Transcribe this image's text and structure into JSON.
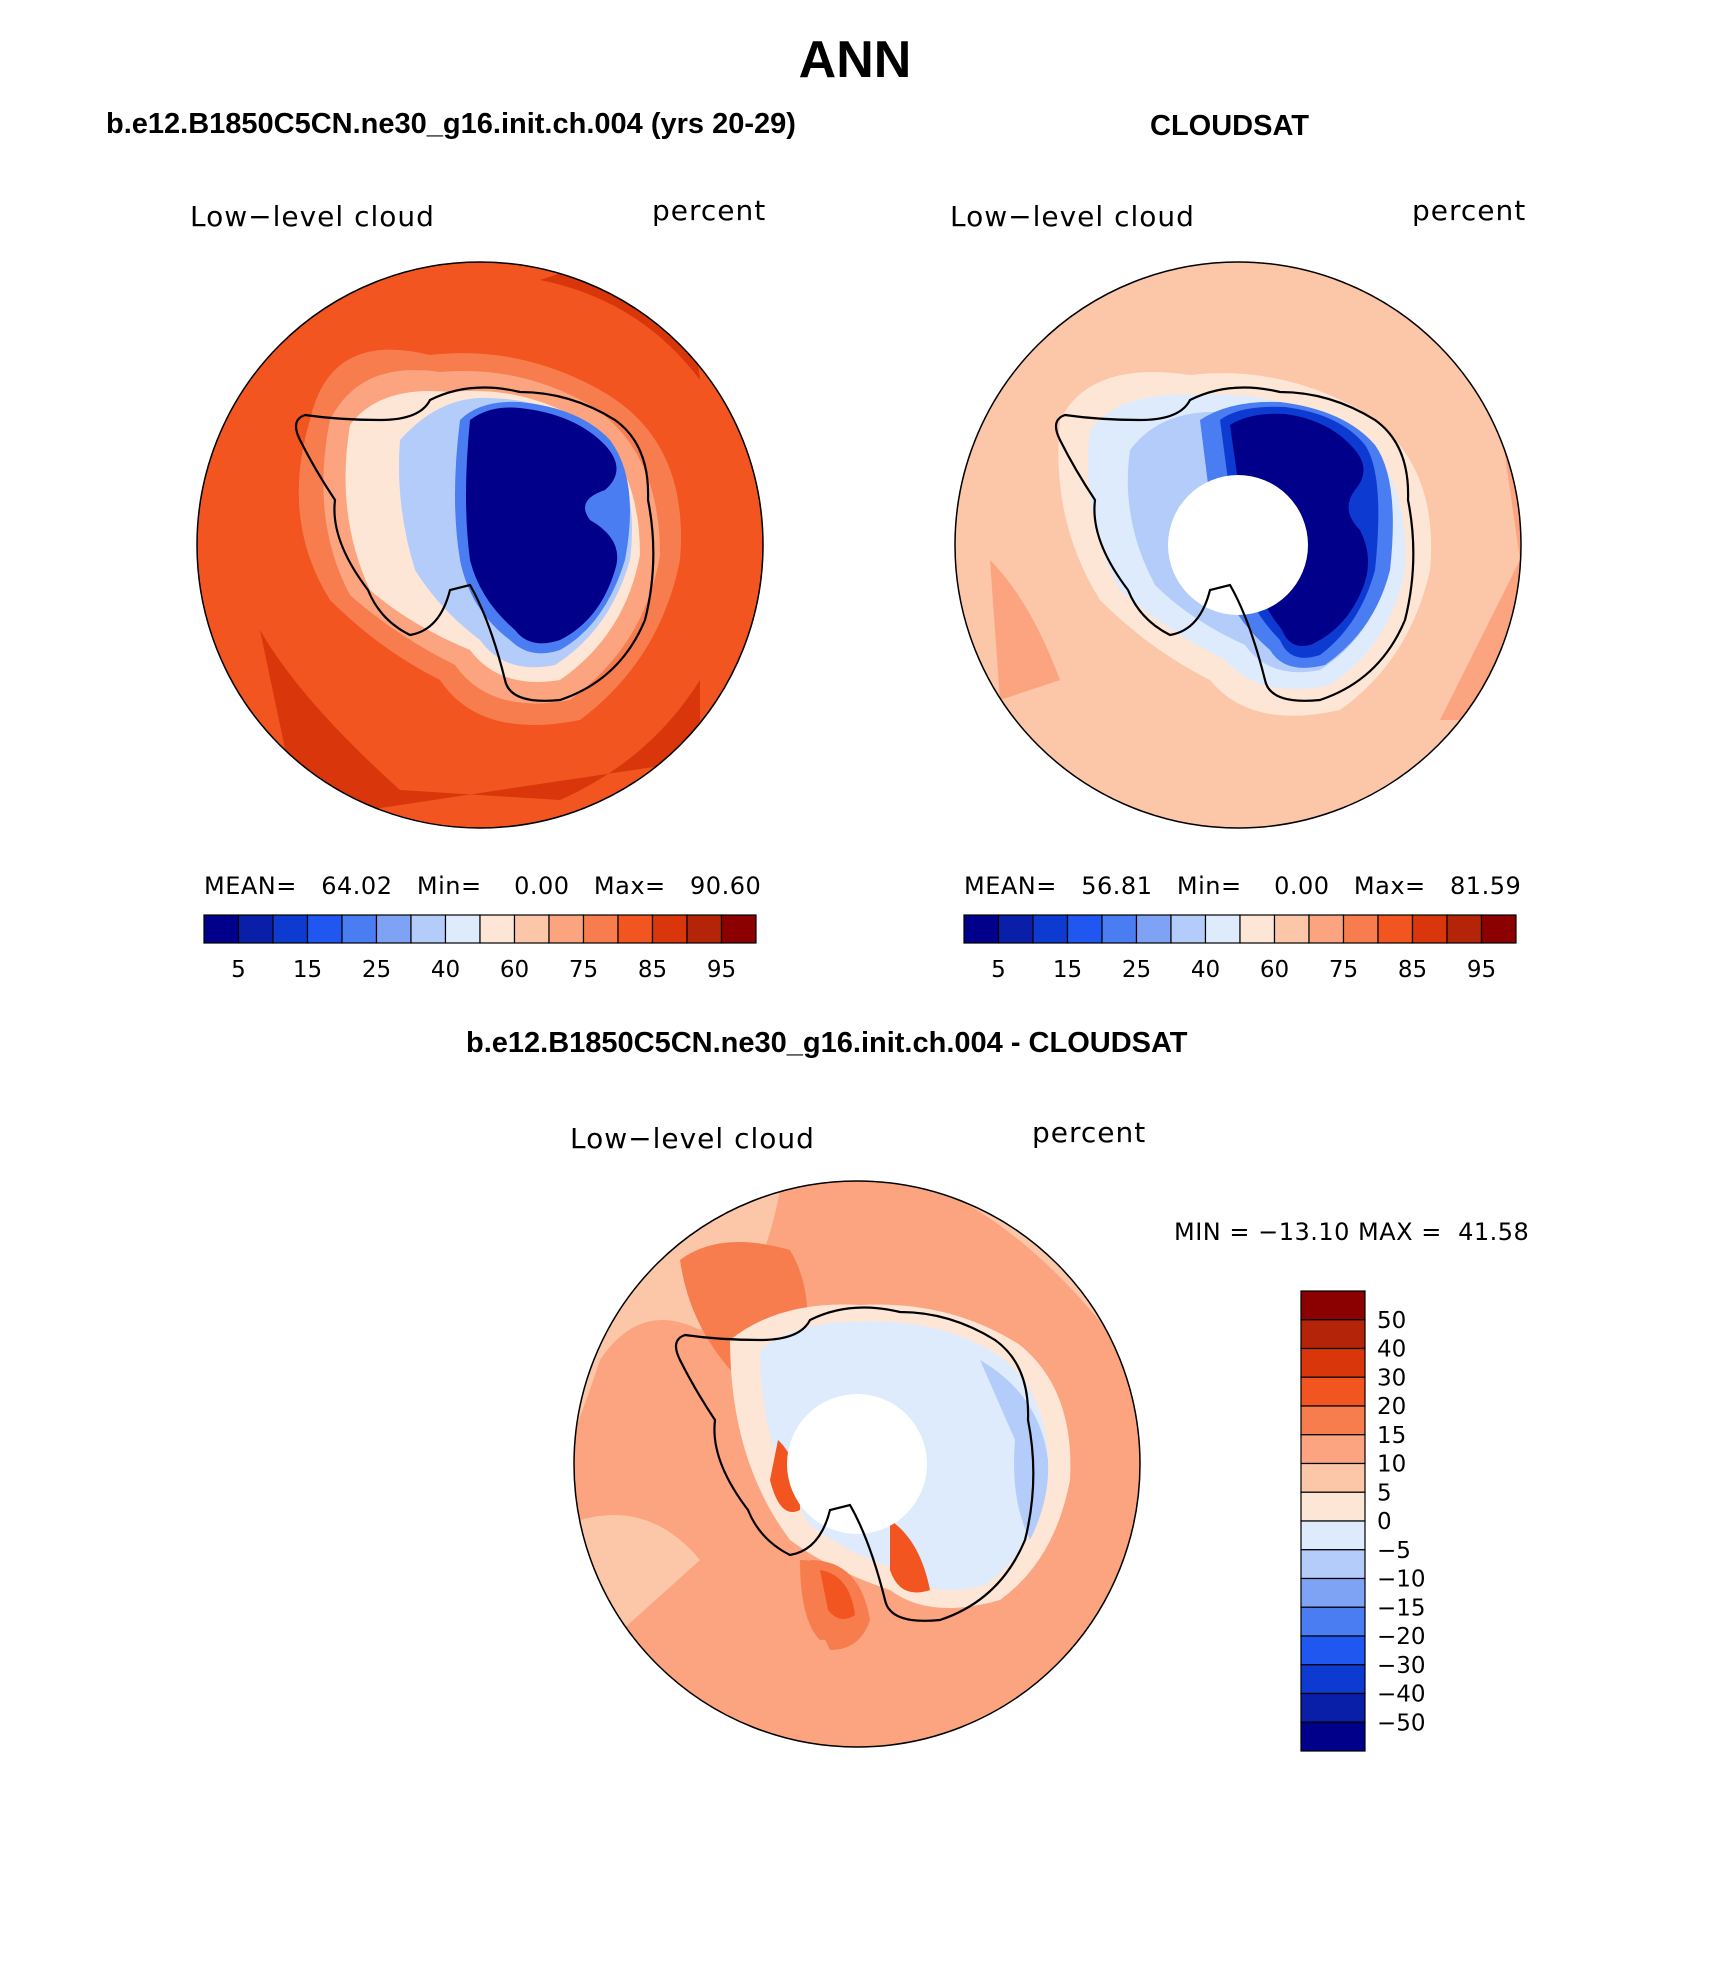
{
  "figure": {
    "title": "ANN"
  },
  "panels": [
    {
      "id": "model",
      "title": "b.e12.B1850C5CN.ne30_g16.init.ch.004 (yrs 20-29)",
      "variable": "Low−level cloud",
      "units": "percent",
      "stats": {
        "mean_label": "MEAN=",
        "mean": "64.02",
        "min_label": "Min=",
        "min": "0.00",
        "max_label": "Max=",
        "max": "90.60"
      }
    },
    {
      "id": "obs",
      "title": "CLOUDSAT",
      "variable": "Low−level cloud",
      "units": "percent",
      "stats": {
        "mean_label": "MEAN=",
        "mean": "56.81",
        "min_label": "Min=",
        "min": "0.00",
        "max_label": "Max=",
        "max": "81.59"
      }
    },
    {
      "id": "diff",
      "title": "b.e12.B1850C5CN.ne30_g16.init.ch.004 - CLOUDSAT",
      "variable": "Low−level cloud",
      "units": "percent",
      "stats_text": "MIN = −13.10 MAX =  41.58"
    }
  ],
  "colorbar_abs": {
    "tick_labels": [
      "5",
      "15",
      "25",
      "40",
      "60",
      "75",
      "85",
      "95"
    ],
    "colors": [
      "#00008b",
      "#0a1fa8",
      "#0d3bd1",
      "#1f57f0",
      "#4a7cf2",
      "#7ea3f5",
      "#b3ccfa",
      "#deebfd",
      "#fde6d5",
      "#fcc6a9",
      "#fba47f",
      "#f77d4f",
      "#f2551f",
      "#d9360b",
      "#b42408",
      "#8b0000"
    ]
  },
  "colorbar_diff": {
    "tick_labels": [
      "50",
      "40",
      "30",
      "20",
      "15",
      "10",
      "5",
      "0",
      "−5",
      "−10",
      "−15",
      "−20",
      "−30",
      "−40",
      "−50"
    ],
    "colors": [
      "#8b0000",
      "#b42408",
      "#d9360b",
      "#f2551f",
      "#f77d4f",
      "#fba47f",
      "#fcc6a9",
      "#fde6d5",
      "#deebfd",
      "#b3ccfa",
      "#7ea3f5",
      "#4a7cf2",
      "#1f57f0",
      "#0d3bd1",
      "#0a1fa8",
      "#00008b"
    ]
  },
  "map_fields": {
    "model": {
      "ocean": "#f2551f",
      "outer": "#d9360b",
      "ring": "#f77d4f",
      "ring2": "#fba47f",
      "coast": "#fde6d5",
      "coast2": "#b3ccfa",
      "interior": "#00008b",
      "interior_edge": "#4a7cf2"
    },
    "obs": {
      "ocean": "#fcc6a9",
      "outer": "#fba47f",
      "ring": "#fde6d5",
      "ring2": "#deebfd",
      "coast": "#b3ccfa",
      "coast2": "#4a7cf2",
      "interior": "#00008b",
      "interior_edge": "#0d3bd1"
    },
    "diff": {
      "ocean": "#fba47f",
      "outer": "#f77d4f",
      "ring": "#fcc6a9",
      "ring2": "#fde6d5",
      "coast": "#deebfd",
      "coast2": "#b3ccfa",
      "interior": "#deebfd",
      "interior_edge": "#f2551f"
    }
  }
}
